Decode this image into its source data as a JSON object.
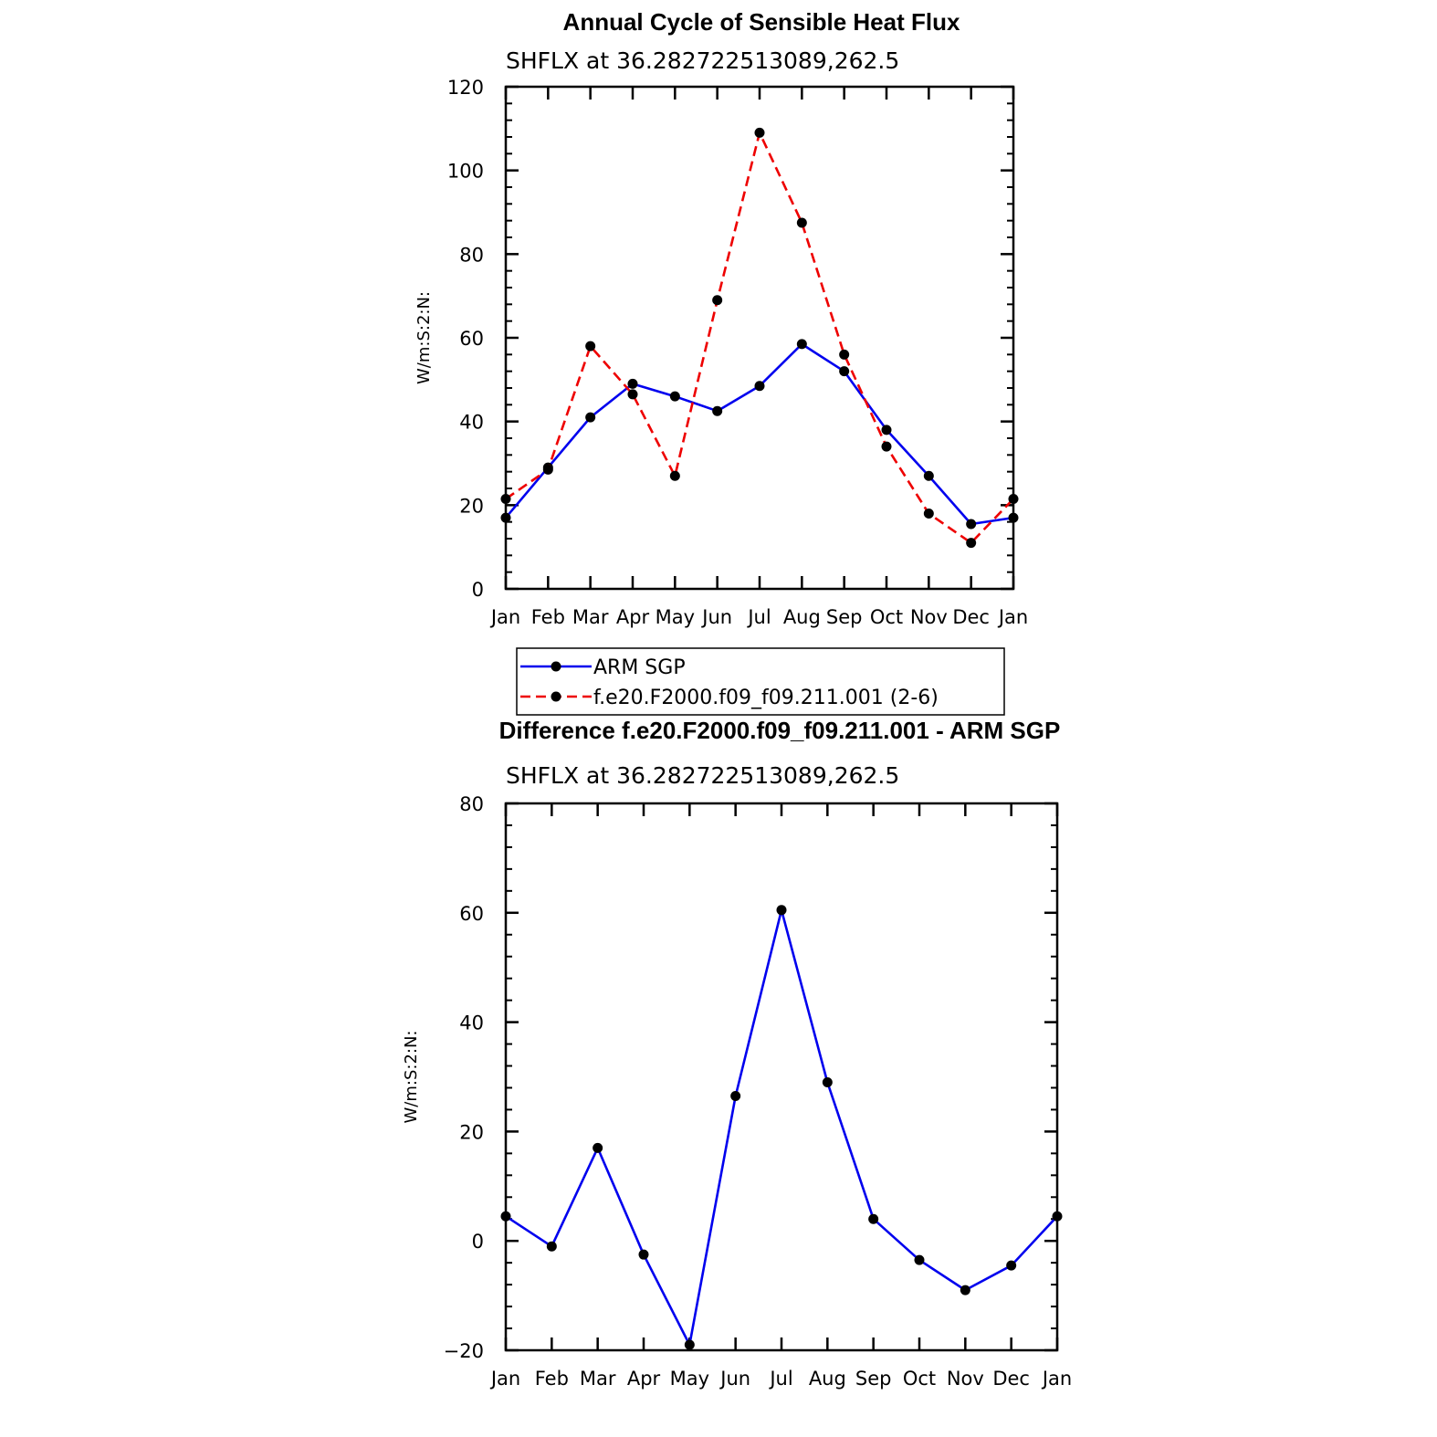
{
  "chart_data": [
    {
      "type": "line",
      "title": "Annual Cycle of Sensible Heat Flux",
      "subtitle": "SHFLX at 36.282722513089,262.5",
      "ylabel": "W/m:S:2:N:",
      "xlabel": "",
      "categories": [
        "Jan",
        "Feb",
        "Mar",
        "Apr",
        "May",
        "Jun",
        "Jul",
        "Aug",
        "Sep",
        "Oct",
        "Nov",
        "Dec",
        "Jan"
      ],
      "ylim": [
        0,
        120
      ],
      "yticks": [
        0,
        20,
        40,
        60,
        80,
        100,
        120
      ],
      "series": [
        {
          "name": "ARM SGP",
          "color": "#0000ee",
          "dash": "solid",
          "values": [
            17,
            29,
            41,
            49,
            46,
            42.5,
            48.5,
            58.5,
            52,
            38,
            27,
            15.5,
            17
          ]
        },
        {
          "name": "f.e20.F2000.f09_f09.211.001 (2-6)",
          "color": "#ee0000",
          "dash": "dashed",
          "values": [
            21.5,
            28.5,
            58,
            46.5,
            27,
            69,
            109,
            87.5,
            56,
            34,
            18,
            11,
            21.5
          ]
        }
      ],
      "legend": "below"
    },
    {
      "type": "line",
      "title": "Difference f.e20.F2000.f09_f09.211.001 - ARM SGP",
      "subtitle": "SHFLX at 36.282722513089,262.5",
      "ylabel": "W/m:S:2:N:",
      "xlabel": "",
      "categories": [
        "Jan",
        "Feb",
        "Mar",
        "Apr",
        "May",
        "Jun",
        "Jul",
        "Aug",
        "Sep",
        "Oct",
        "Nov",
        "Dec",
        "Jan"
      ],
      "ylim": [
        -20,
        80
      ],
      "yticks": [
        -20,
        0,
        20,
        40,
        60,
        80
      ],
      "ytick_labels": [
        "−20",
        "0",
        "20",
        "40",
        "60",
        "80"
      ],
      "series": [
        {
          "name": "Difference",
          "color": "#0000ee",
          "dash": "solid",
          "values": [
            4.5,
            -1,
            17,
            -2.5,
            -19,
            26.5,
            60.5,
            29,
            4,
            -3.5,
            -9,
            -4.5,
            4.5
          ]
        }
      ]
    }
  ]
}
